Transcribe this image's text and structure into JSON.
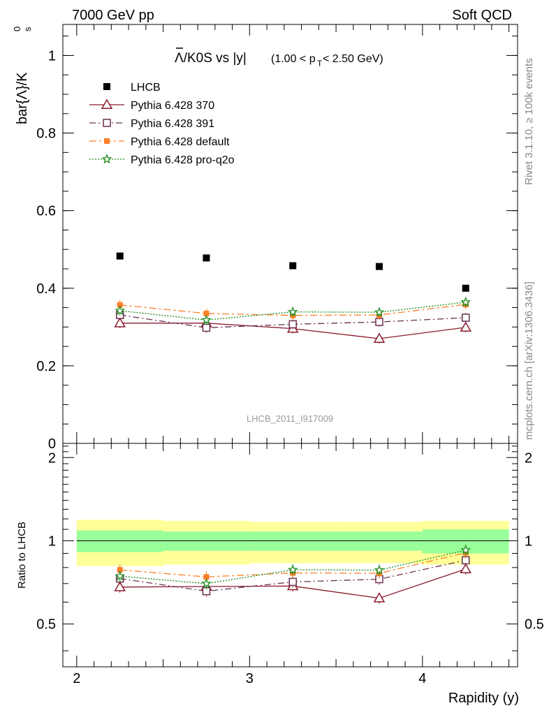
{
  "header": {
    "left": "7000 GeV pp",
    "right": "Soft QCD"
  },
  "side_labels": {
    "rivet": "Rivet 3.1.10, ≥ 100k events",
    "mcplots": "mcplots.cern.ch [arXiv:1306.3436]"
  },
  "analysis_id": "LHCB_2011_I917009",
  "title": {
    "main": "Λ/K0S vs |y|",
    "cut_open": "(1.00 < p",
    "cut_sub": "T",
    "cut_close": " < 2.50 GeV)"
  },
  "chart_data": [
    {
      "type": "line",
      "panel": "main",
      "ylabel": "bar{Λ}/K",
      "ylabel_sup": "0",
      "ylabel_sub": "s",
      "xlim": [
        1.92,
        4.55
      ],
      "ylim": [
        0,
        1.08
      ],
      "y_ticks": [
        0,
        0.2,
        0.4,
        0.6,
        0.8,
        1
      ],
      "y_tick_labels": [
        "0",
        "0.2",
        "0.4",
        "0.6",
        "0.8",
        "1"
      ],
      "legend_position": "top-left",
      "x": [
        2.25,
        2.75,
        3.25,
        3.75,
        4.25
      ],
      "x_bin_edges": [
        2.0,
        2.5,
        3.0,
        3.5,
        4.0,
        4.5
      ],
      "series": [
        {
          "name": "LHCB",
          "values": [
            0.483,
            0.478,
            0.458,
            0.456,
            0.4
          ],
          "marker": "filled-square",
          "color": "#000000",
          "style": "points",
          "rel_err_stat": [
            0.09,
            0.08,
            0.08,
            0.08,
            0.1
          ],
          "rel_err_total": [
            0.19,
            0.18,
            0.17,
            0.17,
            0.18
          ]
        },
        {
          "name": "Pythia 6.428 370",
          "values": [
            0.31,
            0.31,
            0.296,
            0.27,
            0.299
          ],
          "marker": "open-triangle",
          "color": "#8b1a2b",
          "style": "solid"
        },
        {
          "name": "Pythia 6.428 391",
          "values": [
            0.331,
            0.298,
            0.307,
            0.313,
            0.324
          ],
          "marker": "open-square",
          "color": "#6b3050",
          "style": "dashdot"
        },
        {
          "name": "Pythia 6.428 default",
          "values": [
            0.357,
            0.335,
            0.33,
            0.331,
            0.358
          ],
          "marker": "filled-square-small",
          "color": "#ff7f27",
          "style": "dashdot-long"
        },
        {
          "name": "Pythia 6.428 pro-q2o",
          "values": [
            0.342,
            0.318,
            0.339,
            0.338,
            0.364
          ],
          "marker": "star",
          "color": "#1a8a1a",
          "style": "dotted"
        }
      ]
    },
    {
      "type": "line",
      "panel": "ratio",
      "ylabel": "Ratio to LHCB",
      "xlabel": "Rapidity (y)",
      "xlim": [
        1.92,
        4.55
      ],
      "ylim": [
        0.35,
        2.25
      ],
      "y_ticks": [
        0.5,
        1,
        2
      ],
      "y_tick_labels": [
        "0.5",
        "1",
        "2"
      ],
      "x_ticks": [
        2,
        3,
        4
      ],
      "x_tick_labels": [
        "2",
        "3",
        "4"
      ],
      "band_colors": {
        "stat": "#99ff99",
        "total": "#ffff99"
      },
      "series": [
        {
          "name": "Pythia 6.428 370",
          "values": [
            0.68,
            0.683,
            0.686,
            0.62,
            0.79
          ],
          "color": "#8b1a2b"
        },
        {
          "name": "Pythia 6.428 391",
          "values": [
            0.73,
            0.657,
            0.71,
            0.726,
            0.85
          ],
          "color": "#6b3050"
        },
        {
          "name": "Pythia 6.428 default",
          "values": [
            0.785,
            0.74,
            0.765,
            0.763,
            0.905
          ],
          "color": "#ff7f27"
        },
        {
          "name": "Pythia 6.428 pro-q2o",
          "values": [
            0.745,
            0.7,
            0.785,
            0.783,
            0.925
          ],
          "color": "#1a8a1a"
        }
      ]
    }
  ]
}
